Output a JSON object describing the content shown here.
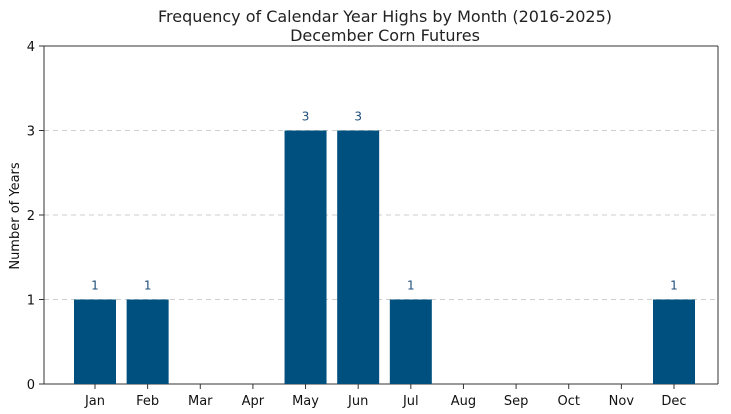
{
  "chart_data": {
    "type": "bar",
    "title": "Frequency of Calendar Year Highs by Month (2016-2025)",
    "subtitle": "December Corn Futures",
    "xlabel": "",
    "ylabel": "Number of Years",
    "categories": [
      "Jan",
      "Feb",
      "Mar",
      "Apr",
      "May",
      "Jun",
      "Jul",
      "Aug",
      "Sep",
      "Oct",
      "Nov",
      "Dec"
    ],
    "values": [
      1,
      1,
      0,
      0,
      3,
      3,
      1,
      0,
      0,
      0,
      0,
      1
    ],
    "ylim": [
      0,
      4
    ],
    "yticks": [
      0,
      1,
      2,
      3,
      4
    ],
    "grid": "horizontal dashed",
    "bar_color": "#00507f",
    "label_color": "#1f4e79"
  }
}
